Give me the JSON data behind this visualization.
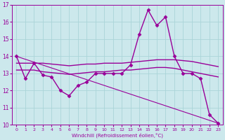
{
  "bg_color": "#cce8ec",
  "grid_color": "#aad4d8",
  "line_color": "#990099",
  "xlabel": "Windchill (Refroidissement éolien,°C)",
  "xlim": [
    -0.5,
    23.5
  ],
  "ylim": [
    10,
    17
  ],
  "yticks": [
    10,
    11,
    12,
    13,
    14,
    15,
    16,
    17
  ],
  "xticks": [
    0,
    1,
    2,
    3,
    4,
    5,
    6,
    7,
    8,
    9,
    10,
    11,
    12,
    13,
    14,
    15,
    16,
    17,
    18,
    19,
    20,
    21,
    22,
    23
  ],
  "series": [
    {
      "x": [
        0,
        1,
        2,
        3,
        4,
        5,
        6,
        7,
        8,
        9,
        10,
        11,
        12,
        13,
        14,
        15,
        16,
        17,
        18,
        19,
        20,
        21,
        22,
        23
      ],
      "y": [
        14.0,
        12.7,
        13.6,
        12.9,
        12.8,
        12.0,
        11.7,
        12.3,
        12.5,
        13.0,
        13.0,
        13.0,
        13.0,
        13.5,
        15.3,
        16.7,
        15.8,
        16.3,
        14.0,
        13.0,
        13.0,
        12.7,
        10.6,
        10.1
      ],
      "marker": "D",
      "markersize": 2.5,
      "linewidth": 1.0,
      "linestyle": "-"
    },
    {
      "x": [
        0,
        1,
        2,
        3,
        4,
        5,
        6,
        7,
        8,
        9,
        10,
        11,
        12,
        13,
        14,
        15,
        16,
        17,
        18,
        19,
        20,
        21,
        22,
        23
      ],
      "y": [
        13.6,
        13.6,
        13.6,
        13.6,
        13.55,
        13.5,
        13.45,
        13.5,
        13.55,
        13.55,
        13.6,
        13.6,
        13.6,
        13.65,
        13.7,
        13.75,
        13.8,
        13.8,
        13.8,
        13.75,
        13.7,
        13.6,
        13.5,
        13.4
      ],
      "marker": null,
      "markersize": 0,
      "linewidth": 1.0,
      "linestyle": "-"
    },
    {
      "x": [
        0,
        1,
        2,
        3,
        4,
        5,
        6,
        7,
        8,
        9,
        10,
        11,
        12,
        13,
        14,
        15,
        16,
        17,
        18,
        19,
        20,
        21,
        22,
        23
      ],
      "y": [
        13.2,
        13.2,
        13.2,
        13.1,
        13.05,
        13.0,
        12.95,
        13.0,
        13.05,
        13.1,
        13.1,
        13.15,
        13.2,
        13.2,
        13.25,
        13.3,
        13.35,
        13.35,
        13.3,
        13.2,
        13.1,
        13.0,
        12.9,
        12.8
      ],
      "marker": null,
      "markersize": 0,
      "linewidth": 1.0,
      "linestyle": "-"
    },
    {
      "x": [
        0,
        23
      ],
      "y": [
        14.0,
        10.1
      ],
      "marker": null,
      "markersize": 0,
      "linewidth": 0.8,
      "linestyle": "-"
    }
  ]
}
